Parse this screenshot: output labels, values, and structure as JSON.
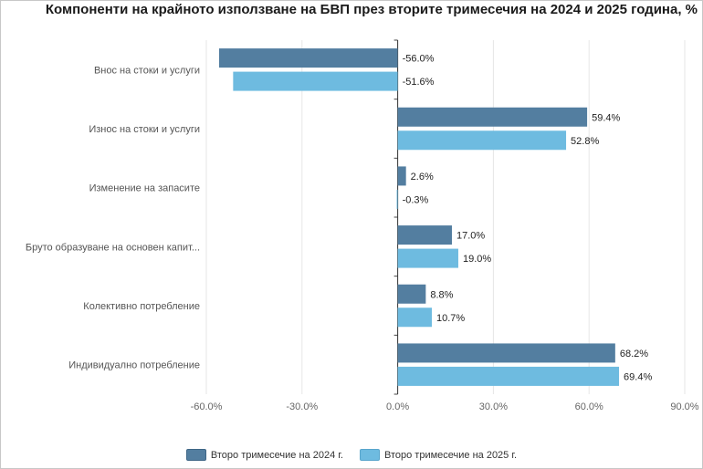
{
  "chart_data": {
    "type": "bar",
    "orientation": "horizontal",
    "title": "Компоненти на крайното използване на БВП през вторите тримесечия на 2024 и 2025 година, %",
    "categories": [
      "Внос на стоки и услуги",
      "Износ на стоки и услуги",
      "Изменение на запасите",
      "Бруто образуване на основен капит...",
      "Колективно потребление",
      "Индивидуално потребление"
    ],
    "series": [
      {
        "name": "Второ тримесечие на 2024 г.",
        "color": "#537ea0",
        "values": [
          -56.0,
          59.4,
          2.6,
          17.0,
          8.8,
          68.2
        ]
      },
      {
        "name": "Второ тримесечие на 2025 г.",
        "color": "#6ebbe0",
        "values": [
          -51.6,
          52.8,
          -0.3,
          19.0,
          10.7,
          69.4
        ]
      }
    ],
    "xlim": [
      -60,
      90
    ],
    "xticks": [
      -60,
      -30,
      0,
      30,
      60,
      90
    ],
    "tick_format": "0.0%",
    "grid": true,
    "legend_position": "bottom"
  }
}
